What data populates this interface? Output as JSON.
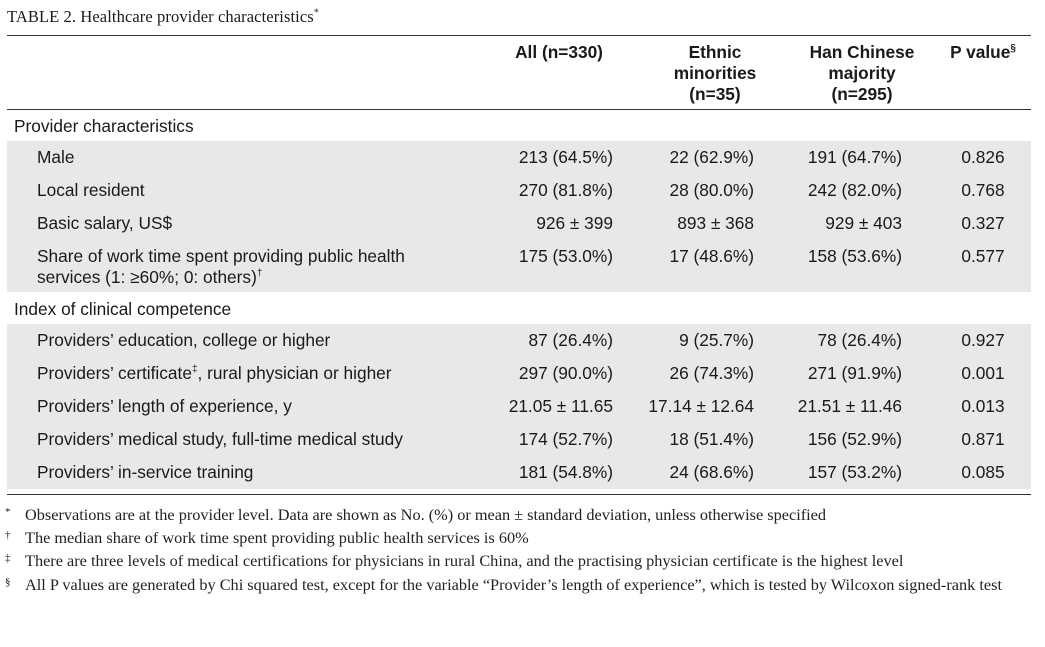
{
  "title": {
    "text": "TABLE 2.  Healthcare provider characteristics",
    "mark": "*"
  },
  "headers": {
    "col1": "",
    "col2": "All (n=330)",
    "col3_line1": "Ethnic",
    "col3_line2": "minorities",
    "col3_line3": "(n=35)",
    "col4_line1": "Han Chinese",
    "col4_line2": "majority",
    "col4_line3": "(n=295)",
    "col5": "P value",
    "col5_mark": "§"
  },
  "sections": [
    {
      "title": "Provider characteristics",
      "rows": [
        {
          "label": "Male",
          "all": "213 (64.5%)",
          "ethnic": "22 (62.9%)",
          "han": "191 (64.7%)",
          "p": "0.826"
        },
        {
          "label": "Local resident",
          "all": "270 (81.8%)",
          "ethnic": "28 (80.0%)",
          "han": "242 (82.0%)",
          "p": "0.768"
        },
        {
          "label": "Basic salary, US$",
          "all": "926 ± 399",
          "ethnic": "893 ± 368",
          "han": "929 ± 403",
          "p": "0.327"
        },
        {
          "label_line1": "Share of work time spent providing public health",
          "label_line2": "services (1: ≥60%; 0: others)",
          "label_mark": "†",
          "all": "175 (53.0%)",
          "ethnic": "17 (48.6%)",
          "han": "158 (53.6%)",
          "p": "0.577"
        }
      ]
    },
    {
      "title": "Index of clinical competence",
      "rows": [
        {
          "label": "Providers’ education, college or higher",
          "all": "87 (26.4%)",
          "ethnic": "9 (25.7%)",
          "han": "78 (26.4%)",
          "p": "0.927"
        },
        {
          "label_pre": "Providers’ certificate",
          "label_mark": "‡",
          "label_post": ", rural physician or higher",
          "all": "297 (90.0%)",
          "ethnic": "26 (74.3%)",
          "han": "271 (91.9%)",
          "p": "0.001"
        },
        {
          "label": "Providers’ length of experience, y",
          "all": "21.05 ± 11.65",
          "ethnic": "17.14 ± 12.64",
          "han": "21.51 ± 11.46",
          "p": "0.013"
        },
        {
          "label": "Providers’ medical study, full-time medical study",
          "all": "174 (52.7%)",
          "ethnic": "18 (51.4%)",
          "han": "156 (52.9%)",
          "p": "0.871"
        },
        {
          "label": "Providers’ in-service training",
          "all": "181 (54.8%)",
          "ethnic": "24 (68.6%)",
          "han": "157 (53.2%)",
          "p": "0.085"
        }
      ]
    }
  ],
  "footnotes": [
    {
      "mark": "*",
      "text": "Observations are at the provider level. Data are shown as No. (%) or mean ± standard deviation, unless otherwise specified"
    },
    {
      "mark": "†",
      "text": "The median share of work time spent providing public health services is 60%"
    },
    {
      "mark": "‡",
      "text": "There are three levels of medical certifications for physicians in rural China, and the practising physician certificate is the highest level"
    },
    {
      "mark": "§",
      "text": "All P values are generated by Chi squared test, except for the variable “Provider’s length of experience”, which is tested by Wilcoxon signed-rank test"
    }
  ],
  "colors": {
    "row_shade": "#e8e8ea",
    "rule": "#333333"
  }
}
